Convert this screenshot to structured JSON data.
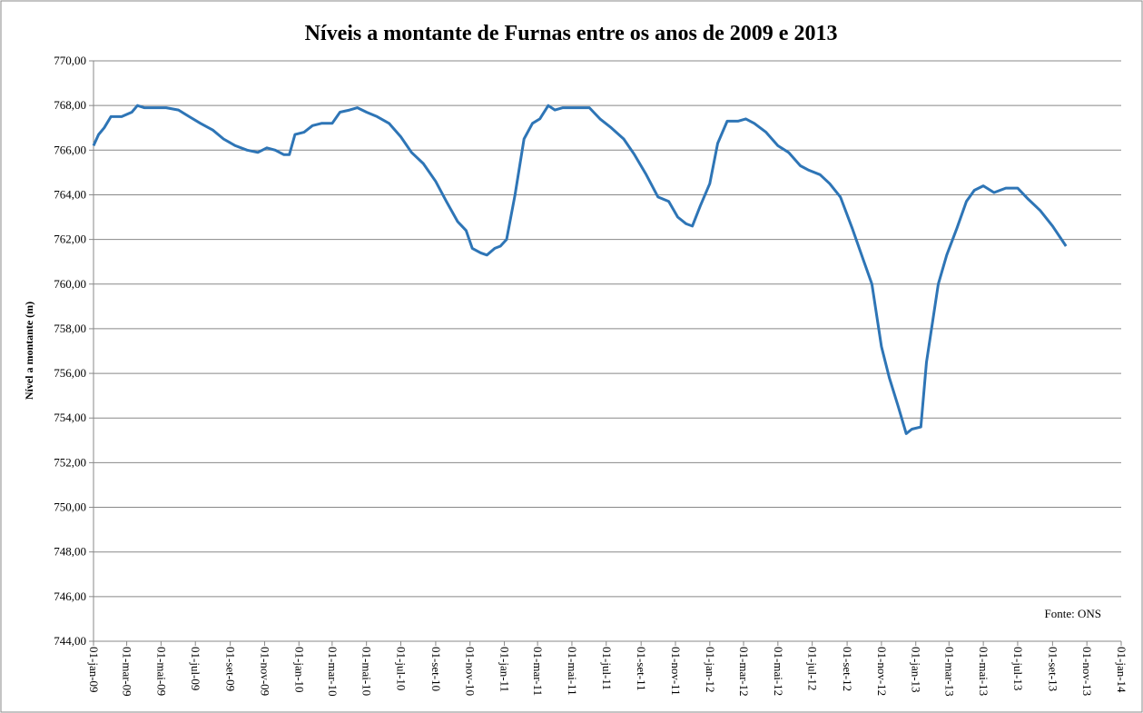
{
  "chart_data": {
    "type": "line",
    "title": "Níveis a montante de Furnas entre os anos de 2009 e 2013",
    "y_label": "Nível a montante  (m)",
    "annotation": "Fonte: ONS",
    "color": "#2e75b6",
    "grid": true,
    "ylim": [
      744,
      770
    ],
    "yticks": [
      {
        "value": 744,
        "label": "744,00"
      },
      {
        "value": 746,
        "label": "746,00"
      },
      {
        "value": 748,
        "label": "748,00"
      },
      {
        "value": 750,
        "label": "750,00"
      },
      {
        "value": 752,
        "label": "752,00"
      },
      {
        "value": 754,
        "label": "754,00"
      },
      {
        "value": 756,
        "label": "756,00"
      },
      {
        "value": 758,
        "label": "758,00"
      },
      {
        "value": 760,
        "label": "760,00"
      },
      {
        "value": 762,
        "label": "762,00"
      },
      {
        "value": 764,
        "label": "764,00"
      },
      {
        "value": 766,
        "label": "766,00"
      },
      {
        "value": 768,
        "label": "768,00"
      },
      {
        "value": 770,
        "label": "770,00"
      }
    ],
    "xlim": [
      "2009-01-01",
      "2014-01-01"
    ],
    "xticks": [
      {
        "value": "2009-01-01",
        "label": "01-jan-09"
      },
      {
        "value": "2009-03-01",
        "label": "01-mar-09"
      },
      {
        "value": "2009-05-01",
        "label": "01-mai-09"
      },
      {
        "value": "2009-07-01",
        "label": "01-jul-09"
      },
      {
        "value": "2009-09-01",
        "label": "01-set-09"
      },
      {
        "value": "2009-11-01",
        "label": "01-nov-09"
      },
      {
        "value": "2010-01-01",
        "label": "01-jan-10"
      },
      {
        "value": "2010-03-01",
        "label": "01-mar-10"
      },
      {
        "value": "2010-05-01",
        "label": "01-mai-10"
      },
      {
        "value": "2010-07-01",
        "label": "01-jul-10"
      },
      {
        "value": "2010-09-01",
        "label": "01-set-10"
      },
      {
        "value": "2010-11-01",
        "label": "01-nov-10"
      },
      {
        "value": "2011-01-01",
        "label": "01-jan-11"
      },
      {
        "value": "2011-03-01",
        "label": "01-mar-11"
      },
      {
        "value": "2011-05-01",
        "label": "01-mai-11"
      },
      {
        "value": "2011-07-01",
        "label": "01-jul-11"
      },
      {
        "value": "2011-09-01",
        "label": "01-set-11"
      },
      {
        "value": "2011-11-01",
        "label": "01-nov-11"
      },
      {
        "value": "2012-01-01",
        "label": "01-jan-12"
      },
      {
        "value": "2012-03-01",
        "label": "01-mar-12"
      },
      {
        "value": "2012-05-01",
        "label": "01-mai-12"
      },
      {
        "value": "2012-07-01",
        "label": "01-jul-12"
      },
      {
        "value": "2012-09-01",
        "label": "01-set-12"
      },
      {
        "value": "2012-11-01",
        "label": "01-nov-12"
      },
      {
        "value": "2013-01-01",
        "label": "01-jan-13"
      },
      {
        "value": "2013-03-01",
        "label": "01-mar-13"
      },
      {
        "value": "2013-05-01",
        "label": "01-mai-13"
      },
      {
        "value": "2013-07-01",
        "label": "01-jul-13"
      },
      {
        "value": "2013-09-01",
        "label": "01-set-13"
      },
      {
        "value": "2013-11-01",
        "label": "01-nov-13"
      },
      {
        "value": "2014-01-01",
        "label": "01-jan-14"
      }
    ],
    "x": [
      "2009-01-01",
      "2009-01-10",
      "2009-01-20",
      "2009-02-01",
      "2009-02-20",
      "2009-03-10",
      "2009-03-20",
      "2009-04-01",
      "2009-04-20",
      "2009-05-10",
      "2009-06-01",
      "2009-06-20",
      "2009-07-10",
      "2009-08-01",
      "2009-08-20",
      "2009-09-10",
      "2009-10-01",
      "2009-10-20",
      "2009-11-05",
      "2009-11-20",
      "2009-12-05",
      "2009-12-15",
      "2009-12-25",
      "2010-01-10",
      "2010-01-25",
      "2010-02-10",
      "2010-03-01",
      "2010-03-15",
      "2010-04-01",
      "2010-04-15",
      "2010-05-01",
      "2010-05-20",
      "2010-06-10",
      "2010-07-01",
      "2010-07-20",
      "2010-08-10",
      "2010-09-01",
      "2010-09-20",
      "2010-10-10",
      "2010-10-25",
      "2010-11-05",
      "2010-11-20",
      "2010-12-01",
      "2010-12-15",
      "2010-12-25",
      "2011-01-05",
      "2011-01-20",
      "2011-02-05",
      "2011-02-20",
      "2011-03-05",
      "2011-03-20",
      "2011-04-01",
      "2011-04-15",
      "2011-05-10",
      "2011-06-01",
      "2011-06-20",
      "2011-07-10",
      "2011-08-01",
      "2011-08-20",
      "2011-09-10",
      "2011-10-01",
      "2011-10-20",
      "2011-11-05",
      "2011-11-20",
      "2011-12-01",
      "2011-12-15",
      "2012-01-01",
      "2012-01-15",
      "2012-02-01",
      "2012-02-20",
      "2012-03-05",
      "2012-03-20",
      "2012-04-10",
      "2012-05-01",
      "2012-05-20",
      "2012-06-10",
      "2012-06-25",
      "2012-07-15",
      "2012-08-01",
      "2012-08-20",
      "2012-09-10",
      "2012-10-01",
      "2012-10-15",
      "2012-11-01",
      "2012-11-15",
      "2012-12-01",
      "2012-12-15",
      "2012-12-25",
      "2013-01-10",
      "2013-01-20",
      "2013-02-10",
      "2013-02-25",
      "2013-03-15",
      "2013-04-01",
      "2013-04-15",
      "2013-05-01",
      "2013-05-20",
      "2013-06-10",
      "2013-07-01",
      "2013-07-20",
      "2013-08-10",
      "2013-09-01",
      "2013-09-25"
    ],
    "values": [
      766.2,
      766.7,
      767.0,
      767.5,
      767.5,
      767.7,
      768.0,
      767.9,
      767.9,
      767.9,
      767.8,
      767.5,
      767.2,
      766.9,
      766.5,
      766.2,
      766.0,
      765.9,
      766.1,
      766.0,
      765.8,
      765.8,
      766.7,
      766.8,
      767.1,
      767.2,
      767.2,
      767.7,
      767.8,
      767.9,
      767.7,
      767.5,
      767.2,
      766.6,
      765.9,
      765.4,
      764.6,
      763.7,
      762.8,
      762.4,
      761.6,
      761.4,
      761.3,
      761.6,
      761.7,
      762.0,
      764.0,
      766.5,
      767.2,
      767.4,
      768.0,
      767.8,
      767.9,
      767.9,
      767.9,
      767.4,
      767.0,
      766.5,
      765.8,
      764.9,
      763.9,
      763.7,
      763.0,
      762.7,
      762.6,
      763.5,
      764.5,
      766.3,
      767.3,
      767.3,
      767.4,
      767.2,
      766.8,
      766.2,
      765.9,
      765.3,
      765.1,
      764.9,
      764.5,
      763.9,
      762.5,
      761.0,
      760.0,
      757.2,
      755.8,
      754.5,
      753.3,
      753.5,
      753.6,
      756.5,
      760.0,
      761.3,
      762.5,
      763.7,
      764.2,
      764.4,
      764.1,
      764.3,
      764.3,
      763.8,
      763.3,
      762.6,
      761.7
    ]
  }
}
